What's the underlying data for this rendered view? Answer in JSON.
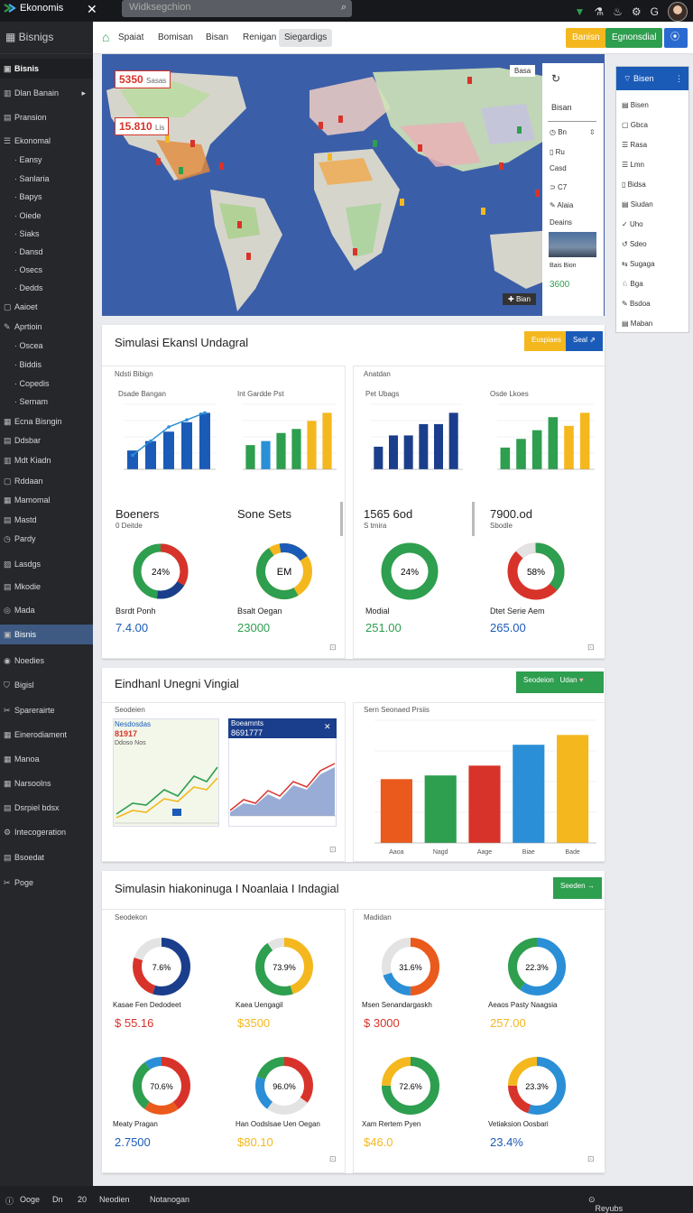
{
  "app": {
    "name": "Ekonomis",
    "search_placeholder": "Widksegchion"
  },
  "sidebar": {
    "header": "Bisnigs",
    "items": [
      {
        "label": "Bisnis",
        "icon": "bag-icon"
      },
      {
        "label": "Dlan Banain",
        "icon": "folder-icon"
      },
      {
        "label": "Pransion",
        "icon": "doc-icon"
      },
      {
        "label": "Ekonomal",
        "icon": "list-icon"
      },
      {
        "label": "Eansy",
        "icon": ""
      },
      {
        "label": "Sanlaria",
        "icon": ""
      },
      {
        "label": "Bapys",
        "icon": ""
      },
      {
        "label": "Oiede",
        "icon": ""
      },
      {
        "label": "Siaks",
        "icon": ""
      },
      {
        "label": "Dansd",
        "icon": ""
      },
      {
        "label": "Osecs",
        "icon": ""
      },
      {
        "label": "Dedds",
        "icon": ""
      },
      {
        "label": "Aaioet",
        "icon": "box-icon"
      },
      {
        "label": "Aprtioin",
        "icon": "pen-icon"
      },
      {
        "label": "Oscea",
        "icon": ""
      },
      {
        "label": "Biddis",
        "icon": ""
      },
      {
        "label": "Copedis",
        "icon": ""
      },
      {
        "label": "Sernam",
        "icon": ""
      },
      {
        "label": "Ecna Bisngin",
        "icon": "grid-icon"
      },
      {
        "label": "Ddsbar",
        "icon": "doc-icon"
      },
      {
        "label": "Mdt Kiadn",
        "icon": "folder-icon"
      },
      {
        "label": "Rddaan",
        "icon": "box-icon"
      },
      {
        "label": "Mamomal",
        "icon": "grid-icon"
      },
      {
        "label": "Mastd",
        "icon": "doc-icon"
      },
      {
        "label": "Pardy",
        "icon": "clock-icon"
      },
      {
        "label": "Lasdgs",
        "icon": "chart-icon"
      },
      {
        "label": "Mkodie",
        "icon": "doc-icon"
      },
      {
        "label": "Mada",
        "icon": "globe-icon"
      },
      {
        "label": "Bisnis",
        "icon": "bag-icon"
      },
      {
        "label": "Noedies",
        "icon": "circle-icon"
      },
      {
        "label": "Bigisl",
        "icon": "shield-icon"
      },
      {
        "label": "Sparerairte",
        "icon": "scissors-icon"
      },
      {
        "label": "Einerodiament",
        "icon": "grid-icon"
      },
      {
        "label": "Manoa",
        "icon": "grid-icon"
      },
      {
        "label": "Narsoolns",
        "icon": "grid-icon"
      },
      {
        "label": "Dsrpiel bdsx",
        "icon": "doc-icon"
      },
      {
        "label": "Intecogeration",
        "icon": "gear-icon"
      },
      {
        "label": "Bsoedat",
        "icon": "doc-icon"
      },
      {
        "label": "Poge",
        "icon": "scissors-icon"
      }
    ]
  },
  "toolbar": {
    "tabs": [
      "Spaiat",
      "Bomisan",
      "Bisan",
      "Renigan",
      "Siegardigs"
    ],
    "btn1": "Banisn",
    "btn2": "Egnonsdial"
  },
  "map": {
    "label1": "5350",
    "label1b": "Sasas",
    "label2": "15.810",
    "label2b": "Lis",
    "corner_btn": "Basa",
    "bottom_btn": "Bian",
    "bottom_tag": "bin"
  },
  "layer_panel": {
    "title": "Bisan",
    "rows": [
      "Bn",
      "Ru",
      "Casd",
      "C7",
      "Alaia"
    ],
    "sub": "Deains",
    "caption": "Bais Bion",
    "value": "3600"
  },
  "right_panel": {
    "title": "Bisen",
    "items": [
      "Bisen",
      "Gbca",
      "Rasa",
      "Lmn",
      "Bidsa",
      "Siudan",
      "Uho",
      "Sdeo",
      "Sugaga",
      "Bga",
      "Bsdoa",
      "Maban"
    ]
  },
  "section1": {
    "title": "Simulasi Ekansl Undagral",
    "btn1": "Euspiaes",
    "btn2": "Seal",
    "panel_left_title": "Ndsti Bibign",
    "panel_right_title": "Anatdan",
    "chart1_title": "Dsade Bangan",
    "chart2_title": "Int Gardde Pst",
    "chart3_title": "Pet Ubags",
    "chart4_title": "Osde Lkoes",
    "stat1": "Boeners",
    "stat1_sub": "0 Deitde",
    "stat2": "Sone Sets",
    "stat3": "1565 6od",
    "stat3_sub": "S tmira",
    "stat4": "7900.od",
    "stat4_sub": "Sbodle",
    "donut1": "24%",
    "donut2": "EM",
    "donut3": "24%",
    "donut4": "58%",
    "d1_label": "Bsrdt Ponh",
    "d1_value": "7.4.00",
    "d2_label": "Bsalt Oegan",
    "d2_value": "23000",
    "d3_label": "Modial",
    "d3_value": "251.00",
    "d4_label": "Dtet Serie Aem",
    "d4_value": "265.00"
  },
  "section2": {
    "title": "Eindhanl Unegni Vingial",
    "btn1": "Seodeion",
    "btn2": "Udan",
    "left_title": "Seodeien",
    "right_title": "Sern Seonaed Prsiis",
    "card1_title": "Nesdosdas",
    "card1_value": "81917",
    "card1_sub": "Ddoso Nos",
    "card2_title": "Boeamnts",
    "card2_value": "8691777",
    "bar_categories": [
      "Aaoa",
      "Nagd",
      "Aage",
      "Biae",
      "Bade"
    ]
  },
  "section3": {
    "title": "Simulasin hiakoninuga I Noanlaia I Indagial",
    "btn": "Seeden",
    "left_title": "Seodekon",
    "right_title": "Madidan",
    "donuts": [
      {
        "center": "7.6%",
        "label": "Kasae Fen Dedodeet",
        "value": "$ 55.16"
      },
      {
        "center": "73.9%",
        "label": "Kaea Uengagil",
        "value": "$3500"
      },
      {
        "center": "31.6%",
        "label": "Msen Senandargaskh",
        "value": "$ 3000"
      },
      {
        "center": "22.3%",
        "label": "Aeaos Pasty Naagsia",
        "value": "257.00"
      },
      {
        "center": "70.6%",
        "label": "Meaty Pragan",
        "value": "2.7500"
      },
      {
        "center": "96.0%",
        "label": "Han Oodslsae Uen Oegan",
        "value": "$80.10"
      },
      {
        "center": "72.6%",
        "label": "Xam Rertem Pyen",
        "value": "$46.0"
      },
      {
        "center": "23.3%",
        "label": "Vetiaksion Oosbari",
        "value": "23.4%"
      }
    ]
  },
  "statusbar": {
    "items": [
      "Ooge",
      "Dn",
      "20",
      "Neodien",
      "Notanogan"
    ],
    "right": "Reyubs Uansar Eidatng"
  },
  "chart_data": [
    {
      "type": "bar",
      "title": "Dsade Bangan",
      "series": [
        {
          "values": [
            2,
            3,
            4,
            5,
            6
          ]
        }
      ],
      "overlay_line": [
        2,
        4,
        6,
        7,
        8
      ]
    },
    {
      "type": "bar",
      "title": "Int Gardde Pst",
      "series": [
        {
          "values": [
            3,
            3.5,
            4.5,
            5,
            6,
            7
          ]
        }
      ]
    },
    {
      "type": "bar",
      "title": "Pet Ubags",
      "series": [
        {
          "values": [
            2,
            3,
            3,
            4,
            4,
            5
          ]
        }
      ]
    },
    {
      "type": "bar",
      "title": "Osde Lkoes",
      "series": [
        {
          "values": [
            2.5,
            3.5,
            4.5,
            6,
            5,
            6.5
          ]
        }
      ]
    },
    {
      "type": "bar",
      "title": "Sern Seonaed Prsiis",
      "categories": [
        "Aaoa",
        "Nagd",
        "Aage",
        "Biae",
        "Bade"
      ],
      "series": [
        {
          "values": [
            52,
            55,
            63,
            80,
            88
          ]
        }
      ],
      "ylim": [
        0,
        100
      ]
    }
  ],
  "colors": {
    "green": "#2e9e4f",
    "blue": "#1b5bb8",
    "yellow": "#f4b81e",
    "red": "#d8332a",
    "orange": "#ea5a1c"
  }
}
